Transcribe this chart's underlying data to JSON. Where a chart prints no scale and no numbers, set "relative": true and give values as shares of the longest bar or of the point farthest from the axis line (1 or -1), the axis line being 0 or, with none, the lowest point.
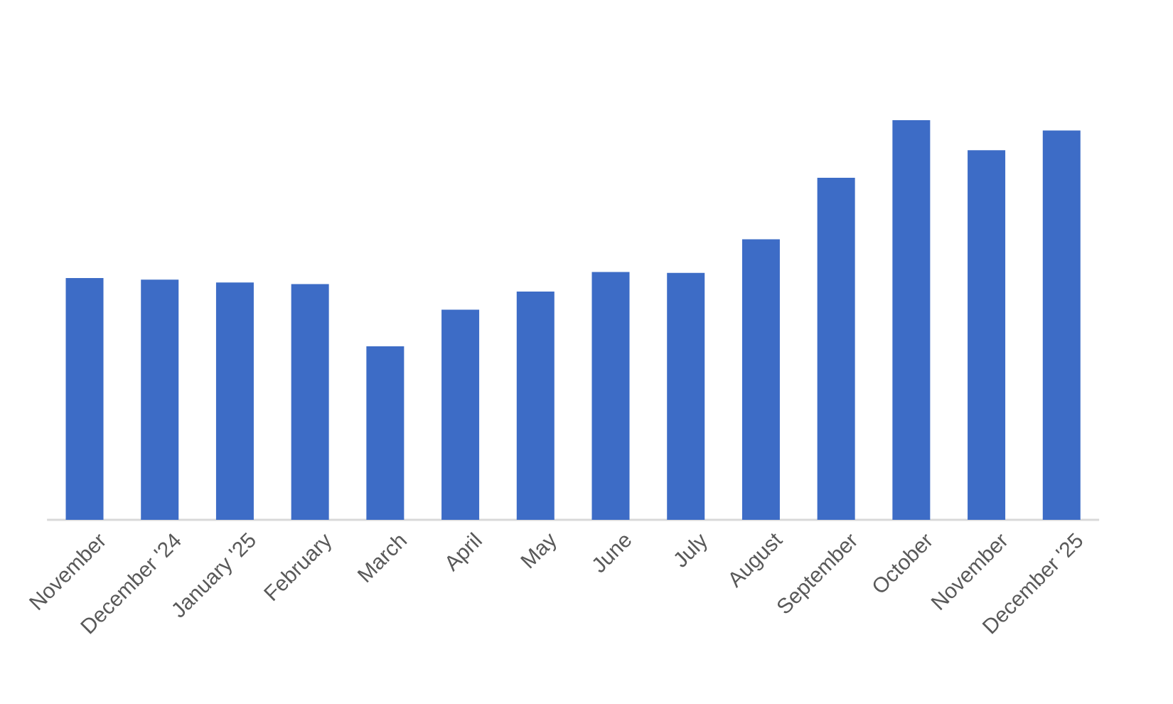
{
  "chart_data": {
    "type": "bar",
    "relative": true,
    "color": "#3d6cc6",
    "categories": [
      "November",
      "December '24",
      "January '25",
      "February",
      "March",
      "April",
      "May",
      "June",
      "July",
      "August",
      "September",
      "October",
      "November",
      "December '25"
    ],
    "values": [
      0.605,
      0.601,
      0.594,
      0.59,
      0.434,
      0.526,
      0.571,
      0.62,
      0.618,
      0.702,
      0.856,
      1,
      0.925,
      0.974
    ]
  }
}
